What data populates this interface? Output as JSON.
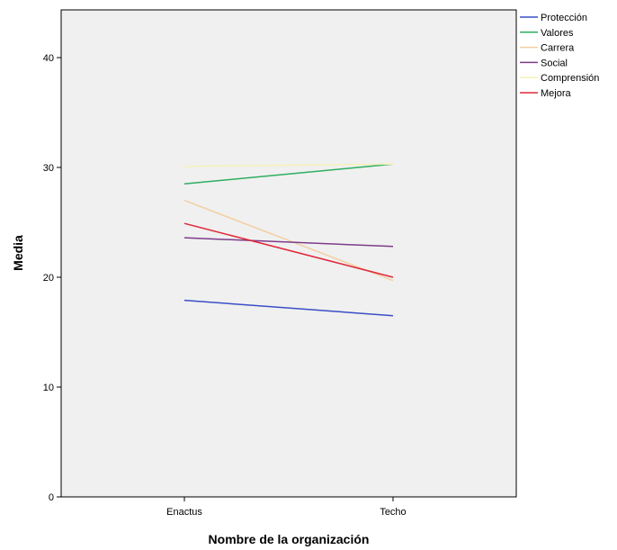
{
  "chart_data": {
    "type": "line",
    "title": "",
    "xlabel": "Nombre de la organización",
    "ylabel": "Media",
    "categories": [
      "Enactus",
      "Techo"
    ],
    "ylim": [
      0,
      44
    ],
    "yticks": [
      0,
      10,
      20,
      30,
      40
    ],
    "grid": false,
    "legend_position": "right",
    "plot_background": "#f0f0f0",
    "series": [
      {
        "name": "Protección",
        "values": [
          17.9,
          16.5
        ],
        "color": "#3a4ec6"
      },
      {
        "name": "Valores",
        "values": [
          28.5,
          30.3
        ],
        "color": "#2eae5f"
      },
      {
        "name": "Carrera",
        "values": [
          27.0,
          19.7
        ],
        "color": "#f2cfa0"
      },
      {
        "name": "Social",
        "values": [
          23.6,
          22.8
        ],
        "color": "#7d3c8a"
      },
      {
        "name": "Comprensión",
        "values": [
          30.1,
          30.3
        ],
        "color": "#f6f2b8"
      },
      {
        "name": "Mejora",
        "values": [
          24.9,
          20.0
        ],
        "color": "#e0283a"
      }
    ]
  }
}
